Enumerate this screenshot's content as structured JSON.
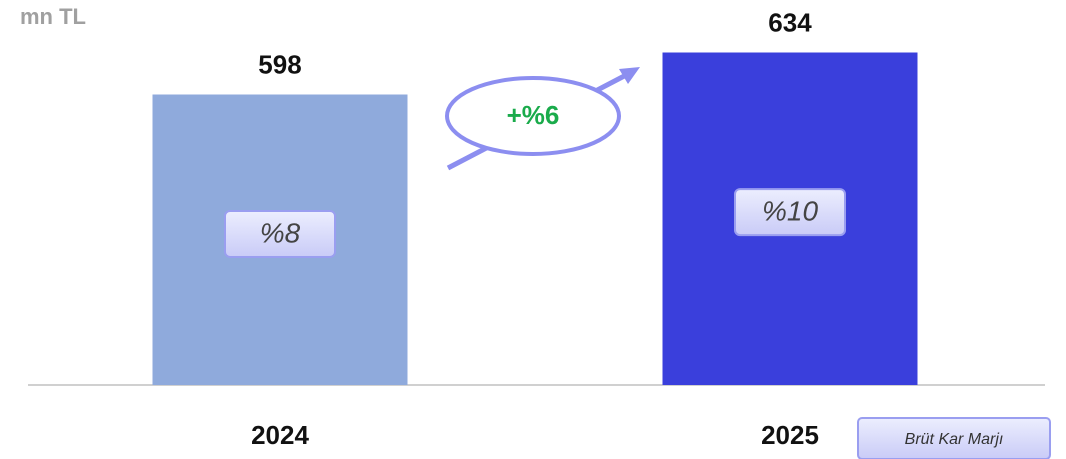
{
  "chart_data": {
    "type": "bar",
    "unit_label": "mn TL",
    "categories": [
      "2024",
      "2025"
    ],
    "values": [
      598,
      634
    ],
    "colors": [
      "#8faadc",
      "#3a3fdc"
    ],
    "ylim": [
      349,
      679
    ],
    "annotation": "+%6",
    "margin": {
      "name": "Brüt Kar Marjı",
      "values": [
        8,
        10
      ],
      "value_labels": [
        "%8",
        "%10"
      ]
    }
  }
}
